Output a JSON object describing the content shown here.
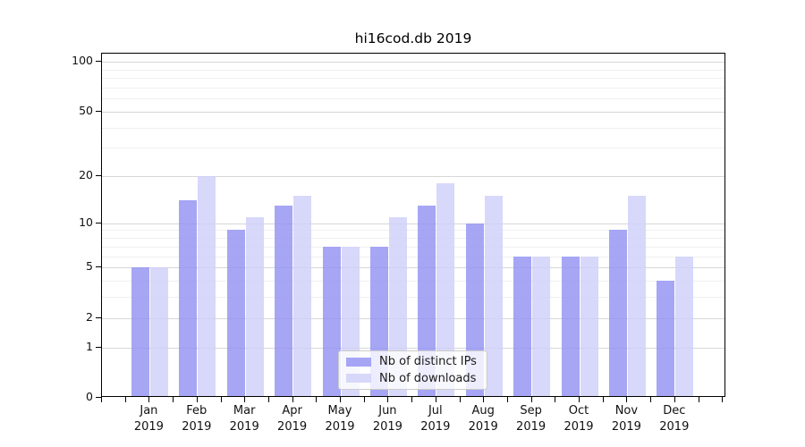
{
  "title": "hi16cod.db 2019",
  "chart_data": {
    "type": "bar",
    "title": "hi16cod.db 2019",
    "categories": [
      "Jan",
      "Feb",
      "Mar",
      "Apr",
      "May",
      "Jun",
      "Jul",
      "Aug",
      "Sep",
      "Oct",
      "Nov",
      "Dec"
    ],
    "year": "2019",
    "series": [
      {
        "name": "Nb of distinct IPs",
        "color": "rgba(146,146,243,0.82)",
        "values": [
          5,
          14,
          9,
          13,
          7,
          7,
          13,
          10,
          6,
          6,
          9,
          4
        ]
      },
      {
        "name": "Nb of downloads",
        "color": "rgba(208,208,249,0.82)",
        "values": [
          5,
          20,
          11,
          15,
          7,
          11,
          18,
          15,
          6,
          6,
          15,
          6
        ]
      }
    ],
    "yscale": "log10(1+y)",
    "ylim": [
      0,
      112
    ],
    "y_major_ticks": [
      100,
      50,
      20,
      10,
      5,
      2,
      1,
      0
    ],
    "y_minor_gridlines": [
      3,
      4,
      6,
      7,
      8,
      9,
      30,
      40,
      60,
      70,
      80,
      90
    ],
    "grid": true,
    "legend_position": "lower center"
  },
  "colors": {
    "major_grid": "#d6d6d6",
    "minor_grid": "#f0f0f0",
    "axis": "#000000",
    "text": "#111111",
    "legend_border": "#cccccc"
  }
}
